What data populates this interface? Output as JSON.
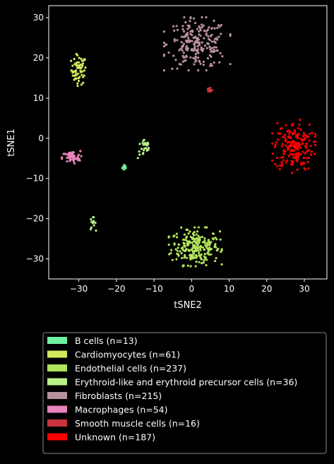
{
  "chart_data": {
    "type": "scatter",
    "xlabel": "tSNE2",
    "ylabel": "tSNE1",
    "xlim": [
      -38,
      36
    ],
    "ylim": [
      -35,
      33
    ],
    "xticks": [
      -30,
      -20,
      -10,
      0,
      10,
      20,
      30
    ],
    "yticks": [
      -30,
      -20,
      -10,
      0,
      10,
      20,
      30
    ],
    "xtick_labels": [
      "−30",
      "−20",
      "−10",
      "0",
      "10",
      "20",
      "30"
    ],
    "ytick_labels": [
      "−30",
      "−20",
      "−10",
      "0",
      "10",
      "20",
      "30"
    ],
    "grid": false,
    "legend_placement": "below plot",
    "background": "#000000",
    "series": [
      {
        "name": "B cells (n=13)",
        "color": "#6ef2a2",
        "count": 13,
        "center": [
          -17.8,
          -7.2
        ],
        "spread": [
          0.3,
          0.4
        ]
      },
      {
        "name": "Cardiomyocytes (n=61)",
        "color": "#d4e85c",
        "count": 61,
        "center": [
          -30.0,
          17.0
        ],
        "spread": [
          1.0,
          1.8
        ]
      },
      {
        "name": "Endothelial cells (n=237)",
        "color": "#b0e35a",
        "count": 237,
        "center": [
          1.0,
          -27.0
        ],
        "spread": [
          3.2,
          2.2
        ]
      },
      {
        "name": "Erythroid-like and erythroid precursor cells (n=36)",
        "color": "#b8f08a",
        "count": 36,
        "center": [
          -12.5,
          -2.5
        ],
        "spread": [
          0.9,
          1.3
        ],
        "secondary": {
          "center": [
            -26.3,
            -21.2
          ],
          "spread": [
            0.4,
            0.8
          ],
          "count": 12
        }
      },
      {
        "name": "Fibroblasts (n=215)",
        "color": "#b8909c",
        "count": 215,
        "center": [
          1.5,
          23.5
        ],
        "spread": [
          4.0,
          3.0
        ]
      },
      {
        "name": "Macrophages (n=54)",
        "color": "#e883bc",
        "count": 54,
        "center": [
          -32.0,
          -4.8
        ],
        "spread": [
          1.2,
          0.8
        ]
      },
      {
        "name": "Smooth muscle cells (n=16)",
        "color": "#c8353c",
        "count": 16,
        "center": [
          4.8,
          12.0
        ],
        "spread": [
          0.4,
          0.4
        ]
      },
      {
        "name": "Unknown (n=187)",
        "color": "#ff0000",
        "count": 187,
        "center": [
          27.2,
          -2.0
        ],
        "spread": [
          2.6,
          3.0
        ]
      }
    ]
  }
}
